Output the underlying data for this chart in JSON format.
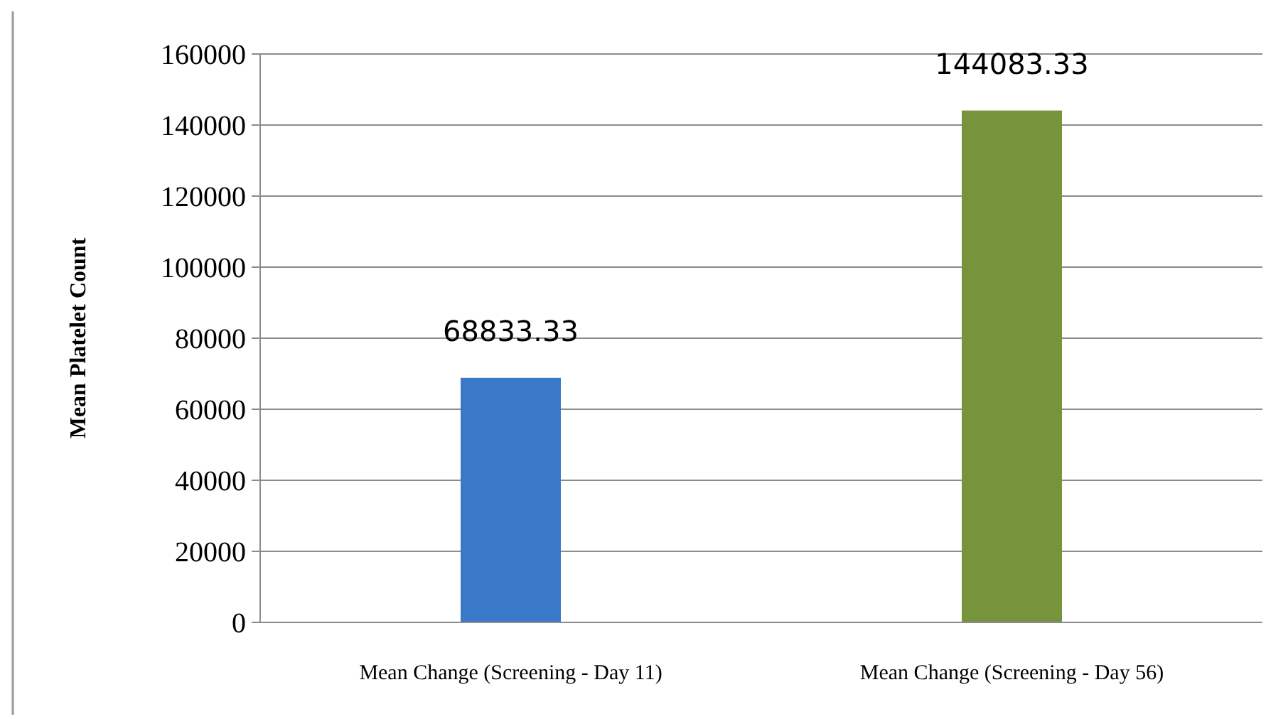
{
  "chart_data": {
    "type": "bar",
    "ylabel": "Mean Platelet Count",
    "categories": [
      "Mean Change (Screening - Day 11)",
      "Mean Change (Screening - Day 56)"
    ],
    "values": [
      68833.33,
      144083.33
    ],
    "colors": [
      "#3a78c8",
      "#77933c"
    ],
    "ylim": [
      0,
      160000
    ],
    "yticks": [
      0,
      20000,
      40000,
      60000,
      80000,
      100000,
      120000,
      140000,
      160000
    ],
    "grid": "y",
    "data_labels": true
  }
}
